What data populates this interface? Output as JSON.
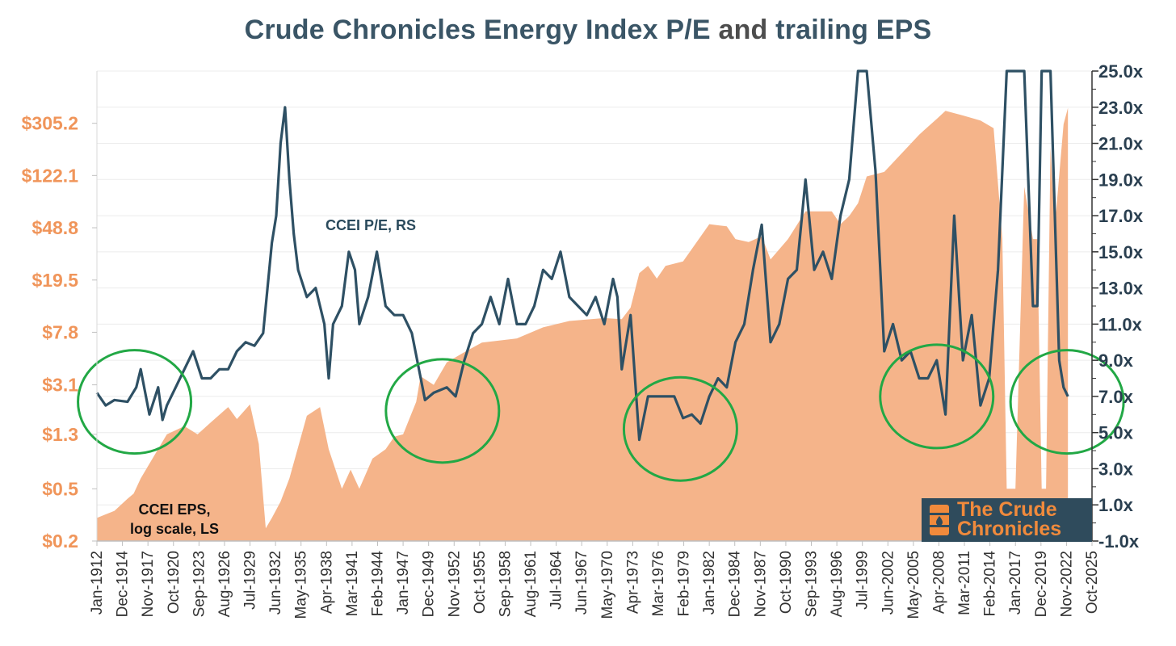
{
  "title_main": "Crude Chronicles Energy Index P/E",
  "title_and": "and",
  "title_end": "trailing EPS",
  "colors": {
    "eps_fill": "#f5b48a",
    "pe_line": "#2e5064",
    "circle": "#22a845",
    "left_axis": "#f0955a",
    "right_axis": "#2a3f50"
  },
  "logo": {
    "line1": "The Crude",
    "line2": "Chronicles",
    "icon": "oil-barrel-icon"
  },
  "chart_data": {
    "type": "line",
    "x_axis": {
      "range": [
        "Jan-1912",
        "Oct-2025"
      ],
      "tick_labels": [
        "Jan-1912",
        "Dec-1914",
        "Nov-1917",
        "Oct-1920",
        "Sep-1923",
        "Aug-1926",
        "Jul-1929",
        "Jun-1932",
        "May-1935",
        "Apr-1938",
        "Mar-1941",
        "Feb-1944",
        "Jan-1947",
        "Dec-1949",
        "Nov-1952",
        "Oct-1955",
        "Sep-1958",
        "Aug-1961",
        "Jul-1964",
        "Jun-1967",
        "May-1970",
        "Apr-1973",
        "Mar-1976",
        "Feb-1979",
        "Jan-1982",
        "Dec-1984",
        "Nov-1987",
        "Oct-1990",
        "Sep-1993",
        "Aug-1996",
        "Jul-1999",
        "Jun-2002",
        "May-2005",
        "Apr-2008",
        "Mar-2011",
        "Feb-2014",
        "Jan-2017",
        "Dec-2019",
        "Nov-2022",
        "Oct-2025"
      ]
    },
    "left_axis": {
      "scale": "log",
      "tick_labels": [
        "$0.2",
        "$0.5",
        "$1.3",
        "$3.1",
        "$7.8",
        "$19.5",
        "$48.8",
        "$122.1",
        "$305.2"
      ],
      "tick_values": [
        0.2,
        0.5,
        1.3,
        3.1,
        7.8,
        19.5,
        48.8,
        122.1,
        305.2
      ],
      "range": [
        0.2,
        763
      ]
    },
    "right_axis": {
      "scale": "linear",
      "tick_labels": [
        "-1.0x",
        "1.0x",
        "3.0x",
        "5.0x",
        "7.0x",
        "9.0x",
        "11.0x",
        "13.0x",
        "15.0x",
        "17.0x",
        "19.0x",
        "21.0x",
        "23.0x",
        "25.0x"
      ],
      "range": [
        -1,
        25
      ]
    },
    "series": [
      {
        "name": "CCEI EPS, log scale, LS",
        "kind": "area",
        "axis": "left",
        "x": [
          1912.0,
          1914.0,
          1915.5,
          1916.2,
          1917.0,
          1920.0,
          1922.0,
          1923.5,
          1925.0,
          1927.0,
          1928.0,
          1929.5,
          1930.5,
          1931.3,
          1932.0,
          1933.0,
          1934.0,
          1936.0,
          1937.5,
          1938.5,
          1940.0,
          1941.0,
          1942.0,
          1943.5,
          1945.0,
          1946.0,
          1947.0,
          1948.5,
          1949.0,
          1950.5,
          1952.0,
          1954.0,
          1956.0,
          1960.0,
          1963.0,
          1966.0,
          1970.0,
          1972.0,
          1973.0,
          1974.0,
          1975.0,
          1976.0,
          1977.0,
          1979.0,
          1982.0,
          1984.0,
          1985.0,
          1986.5,
          1988.0,
          1989.0,
          1991.0,
          1993.0,
          1996.0,
          1997.0,
          1998.0,
          1999.0,
          2000.0,
          2002.0,
          2004.0,
          2006.0,
          2008.0,
          2009.0,
          2011.0,
          2013.0,
          2014.5,
          2015.5,
          2016.0,
          2016.3,
          2017.0,
          2018.0,
          2019.0,
          2019.5,
          2020.0,
          2020.5,
          2021.0,
          2021.5,
          2022.5,
          2023.0
        ],
        "y": [
          0.3,
          0.34,
          0.42,
          0.46,
          0.6,
          1.3,
          1.5,
          1.3,
          1.6,
          2.1,
          1.7,
          2.2,
          1.1,
          0.25,
          0.3,
          0.4,
          0.6,
          1.8,
          2.1,
          1.0,
          0.5,
          0.7,
          0.5,
          0.85,
          1.0,
          1.25,
          1.3,
          2.3,
          3.6,
          3.1,
          4.6,
          5.5,
          6.5,
          7.0,
          8.5,
          9.5,
          10.0,
          9.8,
          12.0,
          22.0,
          25.0,
          20.0,
          25.0,
          27.0,
          52.0,
          50.0,
          40.0,
          38.0,
          42.0,
          28.0,
          40.0,
          65.0,
          65.0,
          52.0,
          60.0,
          75.0,
          120.0,
          130.0,
          180.0,
          250.0,
          330.0,
          380.0,
          350.0,
          320.0,
          280.0,
          40.0,
          0.5,
          0.5,
          0.5,
          100.0,
          40.0,
          40.0,
          0.5,
          0.5,
          200.0,
          50.0,
          300.0,
          400.0
        ]
      },
      {
        "name": "CCEI P/E, RS",
        "kind": "line",
        "axis": "right",
        "x": [
          1912.0,
          1913.0,
          1914.0,
          1915.5,
          1916.5,
          1917.0,
          1918.0,
          1919.0,
          1919.5,
          1920.0,
          1921.0,
          1922.0,
          1923.0,
          1924.0,
          1925.0,
          1926.0,
          1927.0,
          1928.0,
          1929.0,
          1930.0,
          1931.0,
          1932.0,
          1932.5,
          1933.0,
          1933.5,
          1934.0,
          1934.5,
          1935.0,
          1936.0,
          1937.0,
          1938.0,
          1938.5,
          1939.0,
          1940.0,
          1940.8,
          1941.5,
          1942.0,
          1943.0,
          1944.0,
          1944.5,
          1945.0,
          1946.0,
          1947.0,
          1948.0,
          1949.5,
          1950.5,
          1952.0,
          1953.0,
          1954.0,
          1955.0,
          1956.0,
          1957.0,
          1958.0,
          1959.0,
          1960.0,
          1961.0,
          1962.0,
          1963.0,
          1964.0,
          1965.0,
          1966.0,
          1967.0,
          1968.0,
          1969.0,
          1970.0,
          1971.0,
          1971.5,
          1972.0,
          1973.0,
          1974.0,
          1975.0,
          1976.0,
          1977.0,
          1978.0,
          1979.0,
          1980.0,
          1981.0,
          1982.0,
          1983.0,
          1984.0,
          1985.0,
          1986.0,
          1987.0,
          1988.0,
          1989.0,
          1990.0,
          1991.0,
          1992.0,
          1993.0,
          1994.0,
          1995.0,
          1996.0,
          1997.0,
          1998.0,
          1999.0,
          2000.0,
          2001.0,
          2002.0,
          2003.0,
          2004.0,
          2005.0,
          2006.0,
          2007.0,
          2008.0,
          2009.0,
          2010.0,
          2011.0,
          2012.0,
          2013.0,
          2014.0,
          2015.0,
          2016.0,
          2017.0,
          2018.0,
          2019.0,
          2019.5,
          2020.0,
          2021.0,
          2022.0,
          2022.5,
          2023.0
        ],
        "y": [
          7.2,
          6.5,
          6.8,
          6.7,
          7.5,
          8.5,
          6.0,
          7.5,
          5.7,
          6.5,
          7.5,
          8.5,
          9.5,
          8.0,
          8.0,
          8.5,
          8.5,
          9.5,
          10.0,
          9.8,
          10.5,
          15.5,
          17.0,
          21.0,
          23.0,
          19.0,
          16.0,
          14.0,
          12.5,
          13.0,
          11.0,
          8.0,
          11.0,
          12.0,
          15.0,
          14.0,
          11.0,
          12.5,
          15.0,
          13.5,
          12.0,
          11.5,
          11.5,
          10.5,
          6.8,
          7.2,
          7.5,
          7.0,
          9.0,
          10.5,
          11.0,
          12.5,
          11.0,
          13.5,
          11.0,
          11.0,
          12.0,
          14.0,
          13.5,
          15.0,
          12.5,
          12.0,
          11.5,
          12.5,
          11.0,
          13.5,
          12.5,
          8.5,
          11.5,
          4.6,
          7.0,
          7.0,
          7.0,
          7.0,
          5.8,
          6.0,
          5.5,
          7.0,
          8.0,
          7.5,
          10.0,
          11.0,
          14.0,
          16.5,
          10.0,
          11.0,
          13.5,
          14.0,
          19.0,
          14.0,
          15.0,
          13.5,
          17.0,
          19.0,
          25.0,
          25.0,
          19.5,
          9.5,
          11.0,
          9.0,
          9.5,
          8.0,
          8.0,
          9.0,
          6.0,
          17.0,
          9.0,
          11.5,
          6.5,
          8.0,
          14.0,
          25.0,
          25.0,
          25.0,
          12.0,
          12.0,
          25.0,
          25.0,
          9.0,
          7.5,
          7.0
        ]
      }
    ],
    "annotations": [
      {
        "text": "CCEI P/E, RS",
        "color": "#2a4a5c"
      },
      {
        "line1": "CCEI EPS,",
        "line2": "log scale, LS",
        "color": "#111111"
      }
    ],
    "highlight_circles": [
      {
        "center": [
          1916.3,
          6.7
        ]
      },
      {
        "center": [
          1951.5,
          6.2
        ]
      },
      {
        "center": [
          1978.7,
          5.2
        ]
      },
      {
        "center": [
          2008.0,
          7.0
        ]
      },
      {
        "center": [
          2022.9,
          6.7
        ]
      }
    ]
  }
}
